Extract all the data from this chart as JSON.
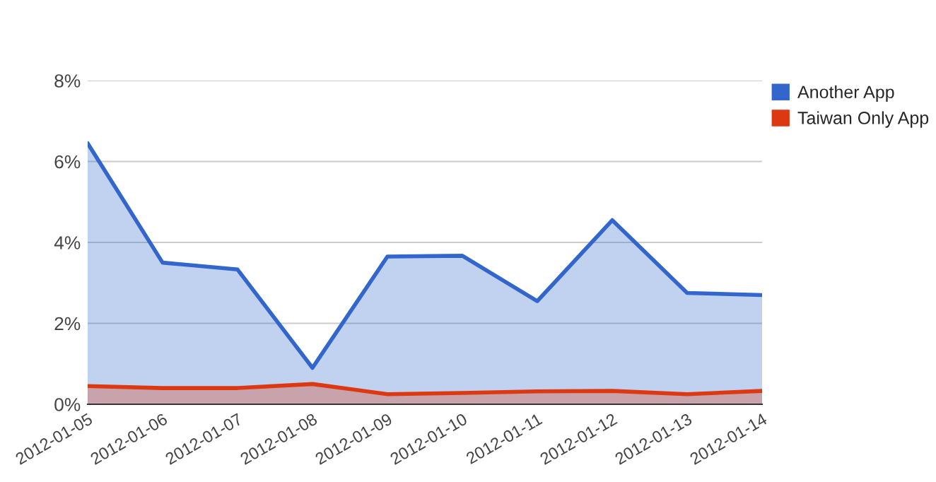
{
  "chart_data": {
    "type": "area",
    "x": [
      "2012-01-05",
      "2012-01-06",
      "2012-01-07",
      "2012-01-08",
      "2012-01-09",
      "2012-01-10",
      "2012-01-11",
      "2012-01-12",
      "2012-01-13",
      "2012-01-14"
    ],
    "series": [
      {
        "name": "Another App",
        "color": "#3366cc",
        "values": [
          6.45,
          3.5,
          3.33,
          0.9,
          3.65,
          3.67,
          2.55,
          4.55,
          2.75,
          2.7
        ]
      },
      {
        "name": "Taiwan Only App",
        "color": "#dc3912",
        "values": [
          0.45,
          0.4,
          0.4,
          0.5,
          0.25,
          0.28,
          0.32,
          0.33,
          0.25,
          0.33
        ]
      }
    ],
    "xlim": [
      "2012-01-05",
      "2012-01-14"
    ],
    "xticks": [
      "2012-01-05",
      "2012-01-06",
      "2012-01-07",
      "2012-01-08",
      "2012-01-09",
      "2012-01-10",
      "2012-01-11",
      "2012-01-12",
      "2012-01-13",
      "2012-01-14"
    ],
    "ylim": [
      0,
      8
    ],
    "yticks": [
      {
        "value": 0,
        "label": "0%"
      },
      {
        "value": 2,
        "label": "2%"
      },
      {
        "value": 4,
        "label": "4%"
      },
      {
        "value": 6,
        "label": "6%"
      },
      {
        "value": 8,
        "label": "8%"
      }
    ],
    "grid": "y",
    "legend": "right"
  }
}
